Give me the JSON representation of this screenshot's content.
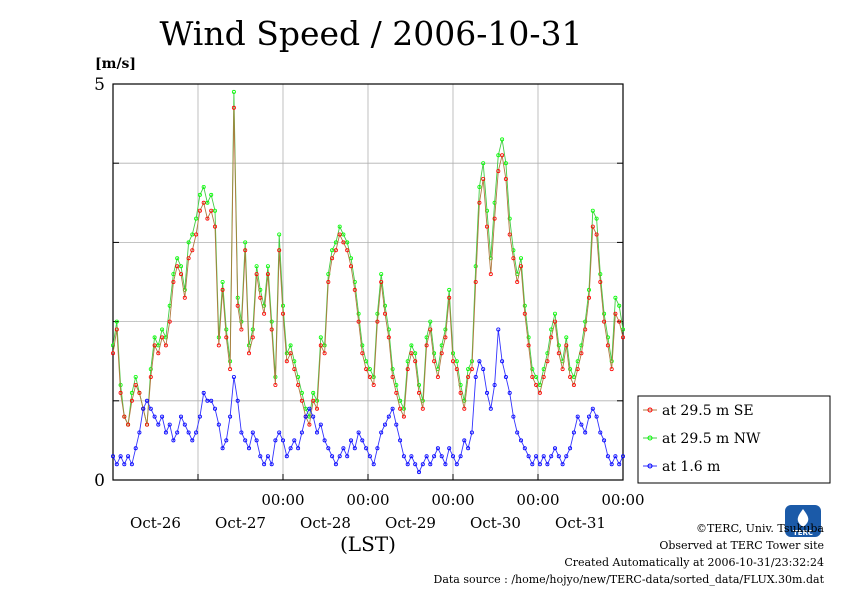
{
  "chart_data": {
    "type": "line",
    "title": "Wind Speed / 2006-10-31",
    "ylabel": "[m/s]",
    "xlabel": "(LST)",
    "ylim": [
      0,
      5
    ],
    "y_ticks": [
      "0",
      "5"
    ],
    "x_tick_top": "00:00",
    "x_ticks": [
      "Oct-26",
      "Oct-27",
      "Oct-28",
      "Oct-29",
      "Oct-30",
      "Oct-31"
    ],
    "x_range_days": [
      -1,
      5
    ],
    "grid": true,
    "legend_position": "right",
    "series": [
      {
        "name": "at 29.5 m SE",
        "color": "#ff0000",
        "values": [
          1.6,
          1.9,
          1.1,
          0.8,
          0.7,
          1.0,
          1.2,
          1.1,
          0.9,
          0.7,
          1.3,
          1.7,
          1.6,
          1.8,
          1.7,
          2.0,
          2.5,
          2.7,
          2.6,
          2.3,
          2.8,
          2.9,
          3.1,
          3.4,
          3.5,
          3.3,
          3.4,
          3.2,
          1.7,
          2.4,
          1.8,
          1.4,
          4.7,
          2.2,
          1.9,
          2.9,
          1.6,
          1.8,
          2.6,
          2.3,
          2.1,
          2.6,
          1.9,
          1.2,
          2.9,
          2.1,
          1.5,
          1.6,
          1.4,
          1.2,
          1.0,
          0.8,
          0.7,
          1.0,
          0.9,
          1.7,
          1.6,
          2.5,
          2.8,
          2.9,
          3.1,
          3.0,
          2.9,
          2.7,
          2.4,
          2.0,
          1.6,
          1.4,
          1.3,
          1.2,
          2.0,
          2.5,
          2.1,
          1.8,
          1.3,
          1.1,
          0.9,
          0.8,
          1.4,
          1.6,
          1.5,
          1.1,
          0.9,
          1.7,
          1.9,
          1.5,
          1.3,
          1.6,
          1.8,
          2.3,
          1.5,
          1.4,
          1.1,
          0.9,
          1.3,
          1.4,
          2.5,
          3.5,
          3.8,
          3.2,
          2.6,
          3.3,
          3.9,
          4.1,
          3.8,
          3.1,
          2.8,
          2.5,
          2.7,
          2.1,
          1.7,
          1.3,
          1.2,
          1.1,
          1.3,
          1.5,
          1.8,
          2.0,
          1.6,
          1.4,
          1.7,
          1.3,
          1.2,
          1.4,
          1.6,
          1.9,
          2.3,
          3.2,
          3.1,
          2.5,
          2.0,
          1.7,
          1.4,
          2.1,
          2.0,
          1.8
        ]
      },
      {
        "name": "at 29.5 m NW",
        "color": "#00ff00",
        "values": [
          1.7,
          2.0,
          1.2,
          0.8,
          0.7,
          1.1,
          1.3,
          1.1,
          0.9,
          0.7,
          1.4,
          1.8,
          1.7,
          1.9,
          1.8,
          2.2,
          2.6,
          2.8,
          2.7,
          2.4,
          3.0,
          3.1,
          3.3,
          3.6,
          3.7,
          3.5,
          3.6,
          3.4,
          1.8,
          2.5,
          1.9,
          1.5,
          4.9,
          2.3,
          2.0,
          3.0,
          1.7,
          1.9,
          2.7,
          2.4,
          2.2,
          2.7,
          2.0,
          1.3,
          3.1,
          2.2,
          1.6,
          1.7,
          1.5,
          1.3,
          1.1,
          0.9,
          0.8,
          1.1,
          1.0,
          1.8,
          1.7,
          2.6,
          2.9,
          3.0,
          3.2,
          3.1,
          3.0,
          2.8,
          2.5,
          2.1,
          1.7,
          1.5,
          1.4,
          1.3,
          2.1,
          2.6,
          2.2,
          1.9,
          1.4,
          1.2,
          1.0,
          0.9,
          1.5,
          1.7,
          1.6,
          1.2,
          1.0,
          1.8,
          2.0,
          1.6,
          1.4,
          1.7,
          1.9,
          2.4,
          1.6,
          1.5,
          1.2,
          1.0,
          1.4,
          1.5,
          2.7,
          3.7,
          4.0,
          3.4,
          2.8,
          3.5,
          4.1,
          4.3,
          4.0,
          3.3,
          2.9,
          2.6,
          2.8,
          2.2,
          1.8,
          1.4,
          1.3,
          1.2,
          1.4,
          1.6,
          1.9,
          2.1,
          1.7,
          1.5,
          1.8,
          1.4,
          1.3,
          1.5,
          1.7,
          2.0,
          2.4,
          3.4,
          3.3,
          2.6,
          2.1,
          1.8,
          1.5,
          2.3,
          2.2,
          1.9
        ]
      },
      {
        "name": "at 1.6 m",
        "color": "#0000ff",
        "values": [
          0.3,
          0.2,
          0.3,
          0.2,
          0.3,
          0.2,
          0.4,
          0.6,
          0.9,
          1.0,
          0.9,
          0.8,
          0.7,
          0.8,
          0.6,
          0.7,
          0.5,
          0.6,
          0.8,
          0.7,
          0.6,
          0.5,
          0.6,
          0.8,
          1.1,
          1.0,
          1.0,
          0.9,
          0.7,
          0.4,
          0.5,
          0.8,
          1.3,
          1.0,
          0.6,
          0.5,
          0.4,
          0.6,
          0.5,
          0.3,
          0.2,
          0.3,
          0.2,
          0.5,
          0.6,
          0.5,
          0.3,
          0.4,
          0.5,
          0.4,
          0.6,
          0.8,
          0.9,
          0.8,
          0.6,
          0.7,
          0.5,
          0.4,
          0.3,
          0.2,
          0.3,
          0.4,
          0.3,
          0.5,
          0.4,
          0.6,
          0.5,
          0.4,
          0.3,
          0.2,
          0.4,
          0.6,
          0.7,
          0.8,
          0.9,
          0.7,
          0.5,
          0.3,
          0.2,
          0.3,
          0.2,
          0.1,
          0.2,
          0.3,
          0.2,
          0.3,
          0.4,
          0.3,
          0.2,
          0.4,
          0.3,
          0.2,
          0.3,
          0.5,
          0.4,
          0.6,
          1.3,
          1.5,
          1.4,
          1.1,
          0.9,
          1.2,
          1.9,
          1.5,
          1.3,
          1.1,
          0.8,
          0.6,
          0.5,
          0.4,
          0.3,
          0.2,
          0.3,
          0.2,
          0.3,
          0.2,
          0.3,
          0.4,
          0.3,
          0.2,
          0.3,
          0.4,
          0.6,
          0.8,
          0.7,
          0.6,
          0.8,
          0.9,
          0.8,
          0.6,
          0.5,
          0.3,
          0.2,
          0.3,
          0.2,
          0.3
        ]
      }
    ]
  },
  "footer": {
    "copyright": "©TERC, Univ. Tsukuba",
    "observed": "Observed at TERC Tower site",
    "created": "Created Automatically at 2006-10-31/23:32:24",
    "source": "Data source : /home/hojyo/new/TERC-data/sorted_data/FLUX.30m.dat"
  },
  "logo": {
    "text": "TERC",
    "color": "#1b5aa8"
  }
}
